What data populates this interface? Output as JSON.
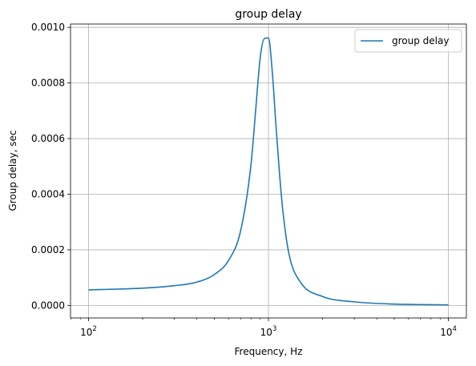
{
  "chart_data": {
    "type": "line",
    "title": "group delay",
    "xlabel": "Frequency, Hz",
    "ylabel": "Group delay, sec",
    "x_scale": "log",
    "xlim": [
      79.4,
      12590
    ],
    "ylim": [
      -4.5e-05,
      0.001012
    ],
    "x_ticks": [
      {
        "value": 100,
        "base": "10",
        "exp": "2"
      },
      {
        "value": 1000,
        "base": "10",
        "exp": "3"
      },
      {
        "value": 10000,
        "base": "10",
        "exp": "4"
      }
    ],
    "y_ticks": [
      {
        "value": 0.0,
        "label": "0.0000"
      },
      {
        "value": 0.0002,
        "label": "0.0002"
      },
      {
        "value": 0.0004,
        "label": "0.0004"
      },
      {
        "value": 0.0006,
        "label": "0.0006"
      },
      {
        "value": 0.0008,
        "label": "0.0008"
      },
      {
        "value": 0.001,
        "label": "0.0010"
      }
    ],
    "grid": true,
    "legend": "top-right",
    "series": [
      {
        "name": "group delay",
        "color": "#1f77b4",
        "x": [
          100,
          150,
          200,
          300,
          400,
          500,
          600,
          700,
          800,
          850,
          900,
          950,
          1000,
          1050,
          1100,
          1150,
          1200,
          1300,
          1500,
          2000,
          3000,
          5000,
          10000
        ],
        "y": [
          5.6e-05,
          5.9e-05,
          6.2e-05,
          7.1e-05,
          8.4e-05,
          0.000111,
          0.000162,
          0.000268,
          0.000508,
          0.000706,
          0.000892,
          0.00096,
          0.000962,
          0.00084,
          0.00065,
          0.00048,
          0.000345,
          0.000185,
          8.5e-05,
          3.2e-05,
          1.3e-05,
          5e-06,
          2e-06
        ]
      }
    ]
  }
}
